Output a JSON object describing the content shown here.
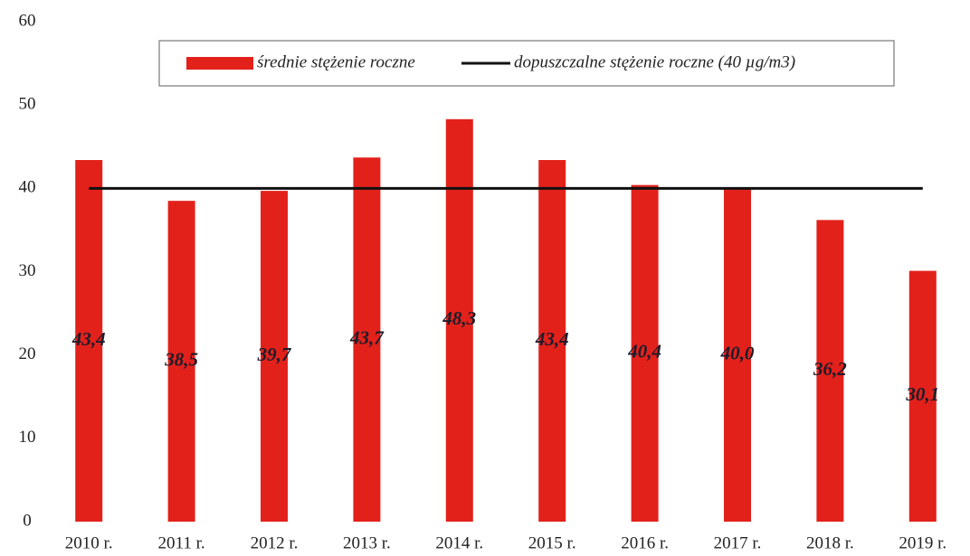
{
  "chart_data": {
    "type": "bar",
    "categories": [
      "2010 r.",
      "2011 r.",
      "2012 r.",
      "2013 r.",
      "2014 r.",
      "2015 r.",
      "2016 r.",
      "2017 r.",
      "2018 r.",
      "2019 r."
    ],
    "series": [
      {
        "name": "średnie stężenie roczne",
        "type": "bar",
        "color": "#e3211b",
        "values": [
          43.4,
          38.5,
          39.7,
          43.7,
          48.3,
          43.4,
          40.4,
          40.0,
          36.2,
          30.1
        ],
        "value_labels": [
          "43,4",
          "38,5",
          "39,7",
          "43,7",
          "48,3",
          "43,4",
          "40,4",
          "40,0",
          "36,2",
          "30,1"
        ]
      },
      {
        "name": "dopuszczalne stężenie roczne (40 µg/m3)",
        "type": "line",
        "color": "#111111",
        "values": [
          40,
          40,
          40,
          40,
          40,
          40,
          40,
          40,
          40,
          40
        ]
      }
    ],
    "ylim": [
      0,
      60
    ],
    "yticks": [
      0,
      10,
      20,
      30,
      40,
      50,
      60
    ],
    "grid": false,
    "legend": "top"
  }
}
